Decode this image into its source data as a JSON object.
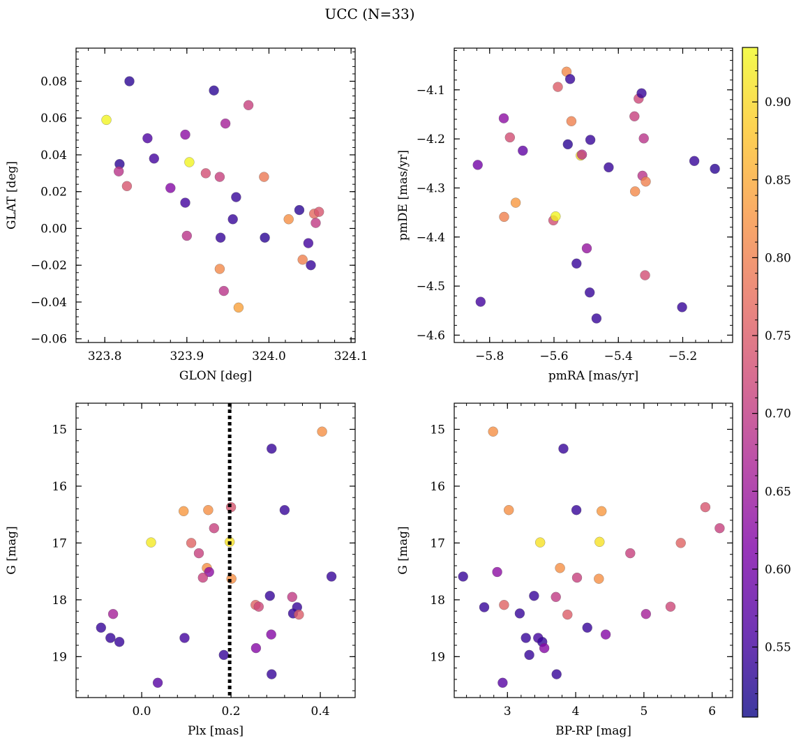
{
  "figure": {
    "title": "UCC (N=33)",
    "colorbar": {
      "range": [
        0.505,
        0.935
      ],
      "ticks": [
        "0.55",
        "0.60",
        "0.65",
        "0.70",
        "0.75",
        "0.80",
        "0.85",
        "0.90"
      ],
      "colormap": "plasma"
    }
  },
  "chart_data": [
    {
      "type": "scatter",
      "xlabel": "GLON [deg]",
      "ylabel": "GLAT [deg]",
      "xlim": [
        323.765,
        324.105
      ],
      "ylim": [
        -0.062,
        0.098
      ],
      "xticks": [
        "323.8",
        "323.9",
        "324.0",
        "324.1"
      ],
      "yticks": [
        "−0.06",
        "−0.04",
        "−0.02",
        "0.00",
        "0.02",
        "0.04",
        "0.06",
        "0.08"
      ],
      "points": [
        {
          "x": 323.802,
          "y": 0.059,
          "c": 0.93
        },
        {
          "x": 323.83,
          "y": 0.08,
          "c": 0.53
        },
        {
          "x": 323.818,
          "y": 0.035,
          "c": 0.53
        },
        {
          "x": 323.817,
          "y": 0.031,
          "c": 0.69
        },
        {
          "x": 323.827,
          "y": 0.023,
          "c": 0.74
        },
        {
          "x": 323.852,
          "y": 0.049,
          "c": 0.56
        },
        {
          "x": 323.86,
          "y": 0.038,
          "c": 0.55
        },
        {
          "x": 323.88,
          "y": 0.022,
          "c": 0.62
        },
        {
          "x": 323.898,
          "y": 0.051,
          "c": 0.63
        },
        {
          "x": 323.898,
          "y": 0.014,
          "c": 0.55
        },
        {
          "x": 323.9,
          "y": -0.004,
          "c": 0.69
        },
        {
          "x": 323.903,
          "y": 0.036,
          "c": 0.93
        },
        {
          "x": 323.923,
          "y": 0.03,
          "c": 0.73
        },
        {
          "x": 323.933,
          "y": 0.075,
          "c": 0.53
        },
        {
          "x": 323.94,
          "y": 0.028,
          "c": 0.71
        },
        {
          "x": 323.941,
          "y": -0.005,
          "c": 0.54
        },
        {
          "x": 323.94,
          "y": -0.022,
          "c": 0.81
        },
        {
          "x": 323.945,
          "y": -0.034,
          "c": 0.69
        },
        {
          "x": 323.947,
          "y": 0.057,
          "c": 0.66
        },
        {
          "x": 323.956,
          "y": 0.005,
          "c": 0.54
        },
        {
          "x": 323.96,
          "y": 0.017,
          "c": 0.54
        },
        {
          "x": 323.963,
          "y": -0.043,
          "c": 0.84
        },
        {
          "x": 323.975,
          "y": 0.067,
          "c": 0.71
        },
        {
          "x": 323.994,
          "y": 0.028,
          "c": 0.79
        },
        {
          "x": 323.995,
          "y": -0.005,
          "c": 0.53
        },
        {
          "x": 324.024,
          "y": 0.005,
          "c": 0.82
        },
        {
          "x": 324.037,
          "y": 0.01,
          "c": 0.53
        },
        {
          "x": 324.041,
          "y": -0.017,
          "c": 0.8
        },
        {
          "x": 324.048,
          "y": -0.008,
          "c": 0.55
        },
        {
          "x": 324.051,
          "y": -0.02,
          "c": 0.54
        },
        {
          "x": 324.055,
          "y": 0.008,
          "c": 0.77
        },
        {
          "x": 324.057,
          "y": 0.003,
          "c": 0.7
        },
        {
          "x": 324.061,
          "y": 0.009,
          "c": 0.74
        }
      ]
    },
    {
      "type": "scatter",
      "xlabel": "pmRA [mas/yr]",
      "ylabel": "pmDE [mas/yr]",
      "xlim": [
        -5.91,
        -5.045
      ],
      "ylim": [
        -4.615,
        -4.015
      ],
      "xticks": [
        "−5.8",
        "−5.6",
        "−5.4",
        "−5.2"
      ],
      "yticks": [
        "−4.6",
        "−4.5",
        "−4.4",
        "−4.3",
        "−4.2",
        "−4.1"
      ],
      "points": [
        {
          "x": -5.837,
          "y": -4.253,
          "c": 0.6
        },
        {
          "x": -5.828,
          "y": -4.532,
          "c": 0.55
        },
        {
          "x": -5.756,
          "y": -4.158,
          "c": 0.63
        },
        {
          "x": -5.755,
          "y": -4.359,
          "c": 0.8
        },
        {
          "x": -5.737,
          "y": -4.197,
          "c": 0.73
        },
        {
          "x": -5.719,
          "y": -4.33,
          "c": 0.83
        },
        {
          "x": -5.697,
          "y": -4.224,
          "c": 0.58
        },
        {
          "x": -5.602,
          "y": -4.366,
          "c": 0.73
        },
        {
          "x": -5.595,
          "y": -4.358,
          "c": 0.93
        },
        {
          "x": -5.588,
          "y": -4.094,
          "c": 0.75
        },
        {
          "x": -5.561,
          "y": -4.063,
          "c": 0.81
        },
        {
          "x": -5.557,
          "y": -4.211,
          "c": 0.53
        },
        {
          "x": -5.55,
          "y": -4.078,
          "c": 0.54
        },
        {
          "x": -5.546,
          "y": -4.164,
          "c": 0.8
        },
        {
          "x": -5.53,
          "y": -4.454,
          "c": 0.54
        },
        {
          "x": -5.517,
          "y": -4.234,
          "c": 0.9
        },
        {
          "x": -5.513,
          "y": -4.232,
          "c": 0.69
        },
        {
          "x": -5.498,
          "y": -4.423,
          "c": 0.64
        },
        {
          "x": -5.489,
          "y": -4.513,
          "c": 0.54
        },
        {
          "x": -5.487,
          "y": -4.202,
          "c": 0.54
        },
        {
          "x": -5.468,
          "y": -4.566,
          "c": 0.54
        },
        {
          "x": -5.43,
          "y": -4.258,
          "c": 0.54
        },
        {
          "x": -5.35,
          "y": -4.154,
          "c": 0.71
        },
        {
          "x": -5.348,
          "y": -4.307,
          "c": 0.81
        },
        {
          "x": -5.337,
          "y": -4.118,
          "c": 0.72
        },
        {
          "x": -5.328,
          "y": -4.107,
          "c": 0.54
        },
        {
          "x": -5.325,
          "y": -4.275,
          "c": 0.69
        },
        {
          "x": -5.321,
          "y": -4.199,
          "c": 0.69
        },
        {
          "x": -5.317,
          "y": -4.478,
          "c": 0.73
        },
        {
          "x": -5.315,
          "y": -4.287,
          "c": 0.8
        },
        {
          "x": -5.202,
          "y": -4.543,
          "c": 0.54
        },
        {
          "x": -5.164,
          "y": -4.245,
          "c": 0.54
        },
        {
          "x": -5.1,
          "y": -4.261,
          "c": 0.53
        }
      ]
    },
    {
      "type": "scatter",
      "xlabel": "Plx [mas]",
      "ylabel": "G [mag]",
      "xlim": [
        -0.147,
        0.478
      ],
      "ylim": [
        19.72,
        14.54
      ],
      "y_inverted": true,
      "vline": 0.197,
      "xticks": [
        "0.0",
        "0.2",
        "0.4"
      ],
      "yticks": [
        "15",
        "16",
        "17",
        "18",
        "19"
      ],
      "points": [
        {
          "x": 0.404,
          "y": 15.04,
          "c": 0.82
        },
        {
          "x": 0.291,
          "y": 15.34,
          "c": 0.54
        },
        {
          "x": 0.32,
          "y": 16.42,
          "c": 0.54
        },
        {
          "x": 0.094,
          "y": 16.44,
          "c": 0.83
        },
        {
          "x": 0.149,
          "y": 16.42,
          "c": 0.82
        },
        {
          "x": 0.2,
          "y": 16.37,
          "c": 0.74
        },
        {
          "x": 0.162,
          "y": 16.74,
          "c": 0.71
        },
        {
          "x": 0.021,
          "y": 16.99,
          "c": 0.92
        },
        {
          "x": 0.111,
          "y": 17.0,
          "c": 0.76
        },
        {
          "x": 0.197,
          "y": 16.98,
          "c": 0.91
        },
        {
          "x": 0.128,
          "y": 17.18,
          "c": 0.71
        },
        {
          "x": 0.146,
          "y": 17.44,
          "c": 0.82
        },
        {
          "x": 0.151,
          "y": 17.51,
          "c": 0.63
        },
        {
          "x": 0.137,
          "y": 17.61,
          "c": 0.71
        },
        {
          "x": 0.201,
          "y": 17.63,
          "c": 0.82
        },
        {
          "x": 0.425,
          "y": 17.59,
          "c": 0.54
        },
        {
          "x": 0.287,
          "y": 17.93,
          "c": 0.54
        },
        {
          "x": 0.337,
          "y": 17.95,
          "c": 0.7
        },
        {
          "x": 0.255,
          "y": 18.09,
          "c": 0.76
        },
        {
          "x": 0.262,
          "y": 18.12,
          "c": 0.72
        },
        {
          "x": 0.348,
          "y": 18.13,
          "c": 0.54
        },
        {
          "x": 0.339,
          "y": 18.24,
          "c": 0.54
        },
        {
          "x": 0.352,
          "y": 18.26,
          "c": 0.75
        },
        {
          "x": -0.064,
          "y": 18.25,
          "c": 0.66
        },
        {
          "x": -0.091,
          "y": 18.49,
          "c": 0.54
        },
        {
          "x": 0.29,
          "y": 18.61,
          "c": 0.62
        },
        {
          "x": -0.07,
          "y": 18.67,
          "c": 0.54
        },
        {
          "x": 0.096,
          "y": 18.67,
          "c": 0.55
        },
        {
          "x": -0.05,
          "y": 18.74,
          "c": 0.54
        },
        {
          "x": 0.256,
          "y": 18.85,
          "c": 0.62
        },
        {
          "x": 0.184,
          "y": 18.97,
          "c": 0.54
        },
        {
          "x": 0.291,
          "y": 19.31,
          "c": 0.54
        },
        {
          "x": 0.036,
          "y": 19.46,
          "c": 0.57
        }
      ]
    },
    {
      "type": "scatter",
      "xlabel": "BP-RP [mag]",
      "ylabel": "G [mag]",
      "xlim": [
        2.22,
        6.3
      ],
      "ylim": [
        19.72,
        14.54
      ],
      "y_inverted": true,
      "xticks": [
        "3",
        "4",
        "5",
        "6"
      ],
      "yticks": [
        "15",
        "16",
        "17",
        "18",
        "19"
      ],
      "points": [
        {
          "x": 2.79,
          "y": 15.04,
          "c": 0.82
        },
        {
          "x": 3.82,
          "y": 15.34,
          "c": 0.54
        },
        {
          "x": 3.02,
          "y": 16.42,
          "c": 0.82
        },
        {
          "x": 4.01,
          "y": 16.42,
          "c": 0.54
        },
        {
          "x": 4.38,
          "y": 16.44,
          "c": 0.83
        },
        {
          "x": 5.9,
          "y": 16.37,
          "c": 0.74
        },
        {
          "x": 6.11,
          "y": 16.74,
          "c": 0.71
        },
        {
          "x": 3.48,
          "y": 16.99,
          "c": 0.91
        },
        {
          "x": 4.35,
          "y": 16.98,
          "c": 0.91
        },
        {
          "x": 5.54,
          "y": 17.0,
          "c": 0.76
        },
        {
          "x": 4.8,
          "y": 17.18,
          "c": 0.71
        },
        {
          "x": 3.77,
          "y": 17.44,
          "c": 0.82
        },
        {
          "x": 2.85,
          "y": 17.51,
          "c": 0.63
        },
        {
          "x": 2.35,
          "y": 17.59,
          "c": 0.54
        },
        {
          "x": 4.02,
          "y": 17.61,
          "c": 0.71
        },
        {
          "x": 4.34,
          "y": 17.63,
          "c": 0.82
        },
        {
          "x": 3.39,
          "y": 17.93,
          "c": 0.54
        },
        {
          "x": 3.71,
          "y": 17.95,
          "c": 0.7
        },
        {
          "x": 2.95,
          "y": 18.09,
          "c": 0.76
        },
        {
          "x": 2.66,
          "y": 18.13,
          "c": 0.54
        },
        {
          "x": 5.39,
          "y": 18.12,
          "c": 0.72
        },
        {
          "x": 3.18,
          "y": 18.24,
          "c": 0.54
        },
        {
          "x": 3.88,
          "y": 18.26,
          "c": 0.75
        },
        {
          "x": 5.03,
          "y": 18.25,
          "c": 0.66
        },
        {
          "x": 4.17,
          "y": 18.49,
          "c": 0.54
        },
        {
          "x": 4.44,
          "y": 18.61,
          "c": 0.62
        },
        {
          "x": 3.27,
          "y": 18.67,
          "c": 0.54
        },
        {
          "x": 3.45,
          "y": 18.67,
          "c": 0.55
        },
        {
          "x": 3.51,
          "y": 18.74,
          "c": 0.54
        },
        {
          "x": 3.54,
          "y": 18.85,
          "c": 0.62
        },
        {
          "x": 3.32,
          "y": 18.97,
          "c": 0.54
        },
        {
          "x": 3.72,
          "y": 19.31,
          "c": 0.54
        },
        {
          "x": 2.93,
          "y": 19.46,
          "c": 0.57
        }
      ]
    }
  ]
}
